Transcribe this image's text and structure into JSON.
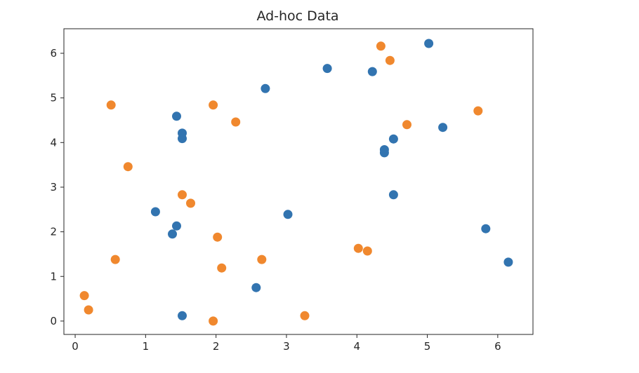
{
  "chart_data": {
    "type": "scatter",
    "title": "Ad-hoc Data",
    "xlabel": "",
    "ylabel": "",
    "xlim": [
      -0.16,
      6.5
    ],
    "ylim": [
      -0.3,
      6.55
    ],
    "xticks": [
      "0",
      "1",
      "2",
      "3",
      "4",
      "5",
      "6"
    ],
    "yticks": [
      "0",
      "1",
      "2",
      "3",
      "4",
      "5",
      "6"
    ],
    "grid": false,
    "series": [
      {
        "color": "#3274b0",
        "points": [
          {
            "x": 1.14,
            "y": 2.45
          },
          {
            "x": 1.38,
            "y": 1.95
          },
          {
            "x": 1.44,
            "y": 2.13
          },
          {
            "x": 1.44,
            "y": 4.59
          },
          {
            "x": 1.52,
            "y": 4.21
          },
          {
            "x": 1.52,
            "y": 4.09
          },
          {
            "x": 1.52,
            "y": 0.12
          },
          {
            "x": 2.57,
            "y": 0.75
          },
          {
            "x": 2.7,
            "y": 5.21
          },
          {
            "x": 3.02,
            "y": 2.39
          },
          {
            "x": 3.58,
            "y": 5.66
          },
          {
            "x": 4.22,
            "y": 5.59
          },
          {
            "x": 4.39,
            "y": 3.84
          },
          {
            "x": 4.39,
            "y": 3.77
          },
          {
            "x": 4.52,
            "y": 4.08
          },
          {
            "x": 4.52,
            "y": 2.83
          },
          {
            "x": 5.02,
            "y": 6.22
          },
          {
            "x": 5.22,
            "y": 4.34
          },
          {
            "x": 5.83,
            "y": 2.07
          },
          {
            "x": 6.15,
            "y": 1.32
          }
        ]
      },
      {
        "color": "#f0882e",
        "points": [
          {
            "x": 0.13,
            "y": 0.57
          },
          {
            "x": 0.19,
            "y": 0.25
          },
          {
            "x": 0.51,
            "y": 4.84
          },
          {
            "x": 0.57,
            "y": 1.38
          },
          {
            "x": 0.75,
            "y": 3.46
          },
          {
            "x": 1.52,
            "y": 2.83
          },
          {
            "x": 1.64,
            "y": 2.64
          },
          {
            "x": 1.96,
            "y": 4.84
          },
          {
            "x": 1.96,
            "y": 0.0
          },
          {
            "x": 2.02,
            "y": 1.88
          },
          {
            "x": 2.08,
            "y": 1.19
          },
          {
            "x": 2.28,
            "y": 4.46
          },
          {
            "x": 2.65,
            "y": 1.38
          },
          {
            "x": 3.26,
            "y": 0.12
          },
          {
            "x": 4.02,
            "y": 1.63
          },
          {
            "x": 4.15,
            "y": 1.57
          },
          {
            "x": 4.34,
            "y": 6.16
          },
          {
            "x": 4.47,
            "y": 5.84
          },
          {
            "x": 4.71,
            "y": 4.4
          },
          {
            "x": 5.72,
            "y": 4.71
          }
        ]
      }
    ]
  }
}
